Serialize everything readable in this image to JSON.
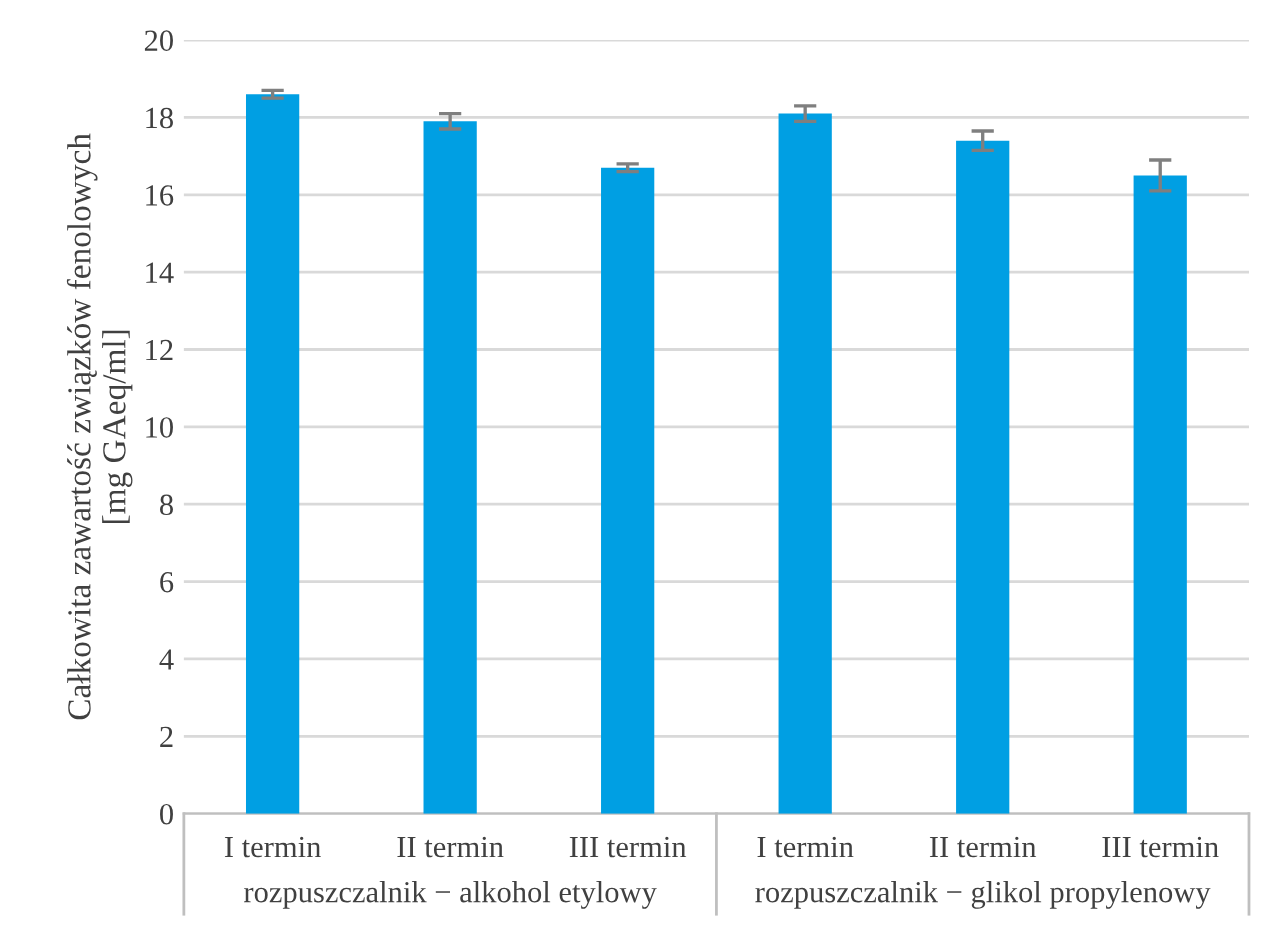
{
  "chart_data": {
    "type": "bar",
    "ylabel": "Całkowita zawartość związków fenolowych\n[mg GAeq/ml]",
    "categories": [
      "I termin",
      "II termin",
      "III termin",
      "I termin",
      "II termin",
      "III termin"
    ],
    "values": [
      18.6,
      17.9,
      16.7,
      18.1,
      17.4,
      16.5
    ],
    "errors": [
      0.1,
      0.2,
      0.1,
      0.2,
      0.25,
      0.4
    ],
    "color": "#009fe3",
    "ylim": [
      0,
      20
    ],
    "yticks": [
      0,
      2,
      4,
      6,
      8,
      10,
      12,
      14,
      16,
      18,
      20
    ],
    "grid": "y",
    "annotations": [
      "rozpuszczalnik − alkohol etylowy",
      "rozpuszczalnik − glikol propylenowy"
    ]
  }
}
